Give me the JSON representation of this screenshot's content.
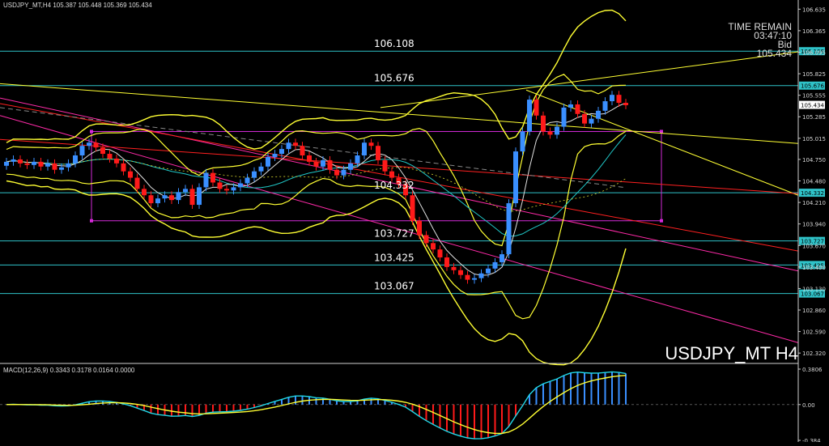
{
  "header": {
    "symbol_line": "USDJPY_MT,H4",
    "ohlc": "105.387 105.448 105.369 105.434"
  },
  "timer": {
    "label": "TIME REMAIN",
    "time": "03:47:10",
    "bid_label": "Bid",
    "bid": "105.434"
  },
  "symbol_big": "USDJPY_MT H4",
  "macd": {
    "label": "MACD(12,26,9) 0.3343 0.3178 0.0164 0.0000",
    "ticks": [
      "0.3806",
      "0.00",
      "-0.384"
    ]
  },
  "colors": {
    "bull": "#3a8fff",
    "bear": "#ff1a1a",
    "level": "#2fc2c8",
    "trend": "#ffff33",
    "trend_pink": "#ff2aa8",
    "rect": "#d42ad8"
  },
  "chart_data": {
    "type": "line",
    "title": "USDJPY_MT H4",
    "ylim": [
      102.2,
      106.75
    ],
    "yticks": [
      "106.635",
      "106.365",
      "106.095",
      "105.825",
      "105.555",
      "105.285",
      "105.015",
      "104.750",
      "104.480",
      "104.210",
      "103.940",
      "103.670",
      "103.400",
      "103.130",
      "102.860",
      "102.590",
      "102.320"
    ],
    "levels": [
      {
        "value": 106.108,
        "label": "106.108"
      },
      {
        "value": 105.676,
        "label": "105.676"
      },
      {
        "value": 104.332,
        "label": "104.332"
      },
      {
        "value": 103.727,
        "label": "103.727"
      },
      {
        "value": 103.425,
        "label": "103.425"
      },
      {
        "value": 103.067,
        "label": "103.067"
      }
    ],
    "price_tag": {
      "value": 105.434,
      "label": "105.434"
    },
    "closes": [
      104.72,
      104.75,
      104.7,
      104.68,
      104.72,
      104.66,
      104.7,
      104.62,
      104.65,
      104.7,
      104.8,
      104.92,
      104.96,
      104.9,
      104.82,
      104.76,
      104.7,
      104.6,
      104.52,
      104.38,
      104.3,
      104.2,
      104.26,
      104.3,
      104.24,
      104.34,
      104.38,
      104.18,
      104.4,
      104.58,
      104.46,
      104.38,
      104.36,
      104.4,
      104.45,
      104.52,
      104.6,
      104.66,
      104.78,
      104.82,
      104.88,
      104.96,
      104.92,
      104.8,
      104.72,
      104.66,
      104.74,
      104.62,
      104.55,
      104.62,
      104.7,
      104.8,
      104.96,
      104.92,
      104.74,
      104.6,
      104.52,
      104.44,
      104.3,
      103.98,
      103.8,
      103.7,
      103.62,
      103.52,
      103.4,
      103.36,
      103.3,
      103.24,
      103.26,
      103.32,
      103.38,
      103.46,
      103.56,
      104.2,
      104.85,
      105.1,
      105.5,
      105.3,
      105.1,
      105.06,
      105.16,
      105.4,
      105.44,
      105.32,
      105.2,
      105.26,
      105.36,
      105.48,
      105.56,
      105.46,
      105.43
    ]
  }
}
